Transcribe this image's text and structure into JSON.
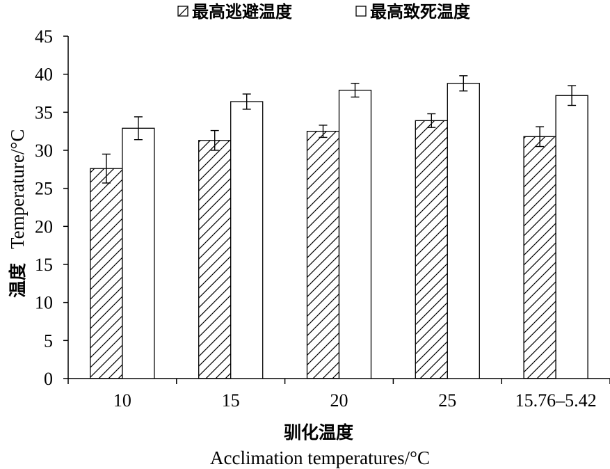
{
  "chart_data": {
    "type": "bar",
    "title": "",
    "categories": [
      "10",
      "15",
      "20",
      "25",
      "15.76–5.42"
    ],
    "series": [
      {
        "name": "最高逃避温度",
        "pattern": "hatch",
        "values": [
          27.6,
          31.3,
          32.5,
          33.9,
          31.8
        ],
        "errors": [
          1.9,
          1.3,
          0.8,
          0.9,
          1.3
        ]
      },
      {
        "name": "最高致死温度",
        "pattern": "solid-white",
        "values": [
          32.9,
          36.4,
          37.9,
          38.8,
          37.2
        ],
        "errors": [
          1.5,
          1.0,
          0.9,
          1.0,
          1.3
        ]
      }
    ],
    "xlabel_cn": "驯化温度",
    "xlabel_en": "Acclimation temperatures/°C",
    "ylabel_cn": "温度",
    "ylabel_en": "Temperature/°C",
    "ylim": [
      0,
      45
    ],
    "yticks": [
      0,
      5,
      10,
      15,
      20,
      25,
      30,
      35,
      40,
      45
    ],
    "grid": false,
    "legend_position": "top-center",
    "colors": {
      "bar_fill": "#ffffff",
      "stroke": "#000000",
      "hatch": "#000000"
    }
  }
}
